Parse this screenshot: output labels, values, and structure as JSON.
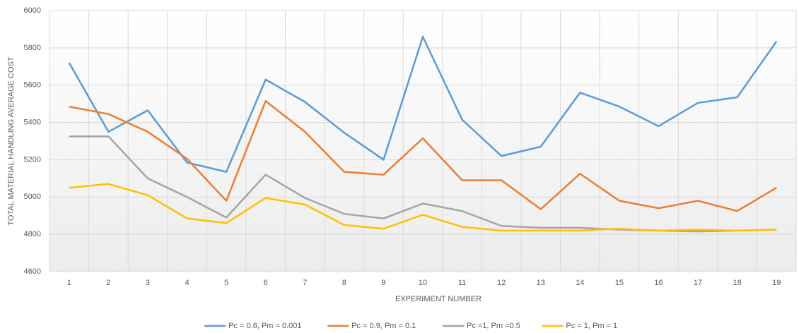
{
  "chart_data": {
    "type": "line",
    "xlabel": "EXPERIMENT NUMBER",
    "ylabel": "TOTAL MATERIAL HANDLING AVERAGE COST",
    "categories": [
      "1",
      "2",
      "3",
      "4",
      "5",
      "6",
      "7",
      "8",
      "9",
      "10",
      "11",
      "12",
      "13",
      "14",
      "15",
      "16",
      "17",
      "18",
      "19"
    ],
    "series": [
      {
        "name": "Pc = 0.6, Pm = 0.001",
        "color": "#5b9bd5",
        "values": [
          5720,
          5350,
          5465,
          5185,
          5135,
          5630,
          5510,
          5345,
          5200,
          5860,
          5415,
          5220,
          5270,
          5560,
          5485,
          5380,
          5505,
          5535,
          5835
        ]
      },
      {
        "name": "Pc = 0.9, Pm = 0.1",
        "color": "#ed7d31",
        "values": [
          5485,
          5445,
          5350,
          5205,
          4980,
          5515,
          5350,
          5135,
          5120,
          5315,
          5090,
          5090,
          4935,
          5125,
          4980,
          4940,
          4980,
          4925,
          5050
        ]
      },
      {
        "name": "Pc =1, Pm =0.5",
        "color": "#a5a5a5",
        "values": [
          5325,
          5325,
          5100,
          5000,
          4890,
          5120,
          4995,
          4910,
          4885,
          4965,
          4925,
          4845,
          4835,
          4835,
          4825,
          4820,
          4815,
          4820,
          4825
        ]
      },
      {
        "name": "Pc = 1, Pm = 1",
        "color": "#ffc000",
        "values": [
          5050,
          5070,
          5010,
          4885,
          4860,
          4995,
          4960,
          4850,
          4830,
          4905,
          4840,
          4820,
          4820,
          4820,
          4830,
          4820,
          4825,
          4820,
          4825
        ]
      }
    ],
    "ylim": [
      4600,
      6000
    ],
    "yticks": [
      4600,
      4800,
      5000,
      5200,
      5400,
      5600,
      5800,
      6000
    ],
    "grid": true,
    "legend": "bottom"
  }
}
